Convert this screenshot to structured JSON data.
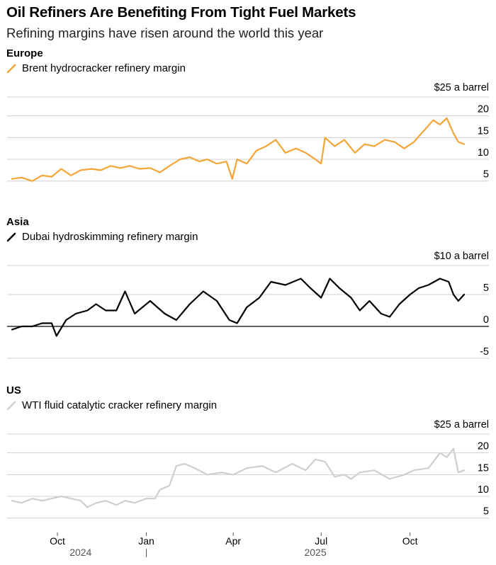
{
  "header": {
    "title": "Oil Refiners Are Benefiting From Tight Fuel Markets",
    "subtitle": "Refining margins have risen around the world this year"
  },
  "colors": {
    "europe": "#f5a436",
    "asia": "#000000",
    "us": "#cfcfcf",
    "grid": "#d0d0d0"
  },
  "time_axis": {
    "tick_labels": [
      "Oct",
      "Jan",
      "Apr",
      "Jul",
      "Oct"
    ],
    "year_labels": [
      "2024",
      "2025"
    ]
  },
  "chart_data": [
    {
      "type": "line",
      "panel_label": "Europe",
      "unit_label": "$25 a barrel",
      "x_start": "2024-08-15",
      "x_end": "2025-11-26",
      "y_ticks": [
        5,
        10,
        15,
        20
      ],
      "ylim": [
        3,
        25
      ],
      "series": [
        {
          "name": "Brent hydrocracker refinery margin",
          "x": [
            "2024-08-15",
            "2024-08-25",
            "2024-09-05",
            "2024-09-15",
            "2024-09-25",
            "2024-10-05",
            "2024-10-15",
            "2024-10-25",
            "2024-11-05",
            "2024-11-15",
            "2024-11-25",
            "2024-12-05",
            "2024-12-15",
            "2024-12-25",
            "2025-01-05",
            "2025-01-15",
            "2025-01-25",
            "2025-02-05",
            "2025-02-15",
            "2025-02-25",
            "2025-03-05",
            "2025-03-15",
            "2025-03-25",
            "2025-03-31",
            "2025-04-05",
            "2025-04-15",
            "2025-04-25",
            "2025-05-05",
            "2025-05-15",
            "2025-05-25",
            "2025-06-05",
            "2025-06-15",
            "2025-06-25",
            "2025-07-01",
            "2025-07-05",
            "2025-07-15",
            "2025-07-25",
            "2025-08-05",
            "2025-08-15",
            "2025-08-25",
            "2025-09-05",
            "2025-09-15",
            "2025-09-25",
            "2025-10-05",
            "2025-10-15",
            "2025-10-25",
            "2025-11-01",
            "2025-11-08",
            "2025-11-15",
            "2025-11-20",
            "2025-11-26"
          ],
          "y": [
            5.5,
            5.8,
            5.0,
            6.3,
            6.0,
            7.8,
            6.3,
            7.5,
            7.8,
            7.5,
            8.5,
            8.0,
            8.5,
            7.8,
            8.0,
            7.0,
            8.5,
            10.0,
            10.5,
            9.5,
            10.0,
            9.0,
            9.5,
            5.5,
            10.0,
            9.0,
            12.0,
            13.0,
            14.5,
            11.5,
            12.5,
            11.5,
            10.0,
            9.0,
            15.0,
            13.0,
            14.5,
            11.5,
            13.5,
            13.0,
            14.5,
            14.0,
            12.5,
            14.0,
            16.5,
            19.0,
            18.0,
            19.5,
            16.0,
            14.0,
            13.5
          ]
        }
      ]
    },
    {
      "type": "line",
      "panel_label": "Asia",
      "unit_label": "$10 a barrel",
      "x_start": "2024-08-15",
      "x_end": "2025-11-26",
      "y_ticks": [
        -5,
        0,
        5
      ],
      "ylim": [
        -5,
        10
      ],
      "series": [
        {
          "name": "Dubai hydroskimming refinery margin",
          "x": [
            "2024-08-15",
            "2024-08-25",
            "2024-09-05",
            "2024-09-15",
            "2024-09-25",
            "2024-09-30",
            "2024-10-10",
            "2024-10-20",
            "2024-11-01",
            "2024-11-10",
            "2024-11-20",
            "2024-12-01",
            "2024-12-10",
            "2024-12-20",
            "2025-01-05",
            "2025-01-20",
            "2025-02-01",
            "2025-02-15",
            "2025-03-01",
            "2025-03-15",
            "2025-03-28",
            "2025-04-05",
            "2025-04-15",
            "2025-04-28",
            "2025-05-10",
            "2025-05-25",
            "2025-06-10",
            "2025-06-20",
            "2025-07-01",
            "2025-07-10",
            "2025-07-20",
            "2025-08-01",
            "2025-08-10",
            "2025-08-20",
            "2025-09-01",
            "2025-09-10",
            "2025-09-20",
            "2025-10-01",
            "2025-10-10",
            "2025-10-20",
            "2025-11-01",
            "2025-11-10",
            "2025-11-15",
            "2025-11-20",
            "2025-11-26"
          ],
          "y": [
            -0.5,
            0.0,
            0.0,
            0.5,
            0.5,
            -1.5,
            1.0,
            2.0,
            2.5,
            3.5,
            2.5,
            2.5,
            5.5,
            2.0,
            4.0,
            2.0,
            1.0,
            3.5,
            5.5,
            4.0,
            1.0,
            0.5,
            3.0,
            4.5,
            7.0,
            6.5,
            7.5,
            6.0,
            4.5,
            7.5,
            6.0,
            4.5,
            2.5,
            4.0,
            2.0,
            1.5,
            3.5,
            5.0,
            6.0,
            6.5,
            7.5,
            7.0,
            5.0,
            4.0,
            5.0
          ]
        }
      ]
    },
    {
      "type": "line",
      "panel_label": "US",
      "unit_label": "$25 a barrel",
      "x_start": "2024-08-15",
      "x_end": "2025-11-26",
      "y_ticks": [
        5,
        10,
        15,
        20
      ],
      "ylim": [
        3,
        25
      ],
      "series": [
        {
          "name": "WTI fluid catalytic cracker refinery margin",
          "x": [
            "2024-08-15",
            "2024-08-25",
            "2024-09-05",
            "2024-09-15",
            "2024-09-25",
            "2024-10-05",
            "2024-10-15",
            "2024-10-25",
            "2024-11-01",
            "2024-11-10",
            "2024-11-20",
            "2024-12-01",
            "2024-12-10",
            "2024-12-20",
            "2025-01-01",
            "2025-01-10",
            "2025-01-15",
            "2025-01-25",
            "2025-02-01",
            "2025-02-10",
            "2025-02-20",
            "2025-03-05",
            "2025-03-20",
            "2025-04-01",
            "2025-04-15",
            "2025-05-01",
            "2025-05-15",
            "2025-06-01",
            "2025-06-15",
            "2025-06-25",
            "2025-07-05",
            "2025-07-15",
            "2025-07-25",
            "2025-08-01",
            "2025-08-10",
            "2025-08-25",
            "2025-09-10",
            "2025-09-25",
            "2025-10-05",
            "2025-10-20",
            "2025-11-01",
            "2025-11-08",
            "2025-11-15",
            "2025-11-20",
            "2025-11-26"
          ],
          "y": [
            9.0,
            8.5,
            9.5,
            9.0,
            9.5,
            10.0,
            9.5,
            9.0,
            7.5,
            8.5,
            9.0,
            8.0,
            9.0,
            8.5,
            9.5,
            9.5,
            11.5,
            12.5,
            17.0,
            17.5,
            16.5,
            15.0,
            15.5,
            15.0,
            16.5,
            17.0,
            15.5,
            17.5,
            16.0,
            18.5,
            18.0,
            14.5,
            15.0,
            14.0,
            15.5,
            16.0,
            14.0,
            15.0,
            16.0,
            16.5,
            20.0,
            19.0,
            21.0,
            15.5,
            16.0
          ]
        }
      ]
    }
  ]
}
